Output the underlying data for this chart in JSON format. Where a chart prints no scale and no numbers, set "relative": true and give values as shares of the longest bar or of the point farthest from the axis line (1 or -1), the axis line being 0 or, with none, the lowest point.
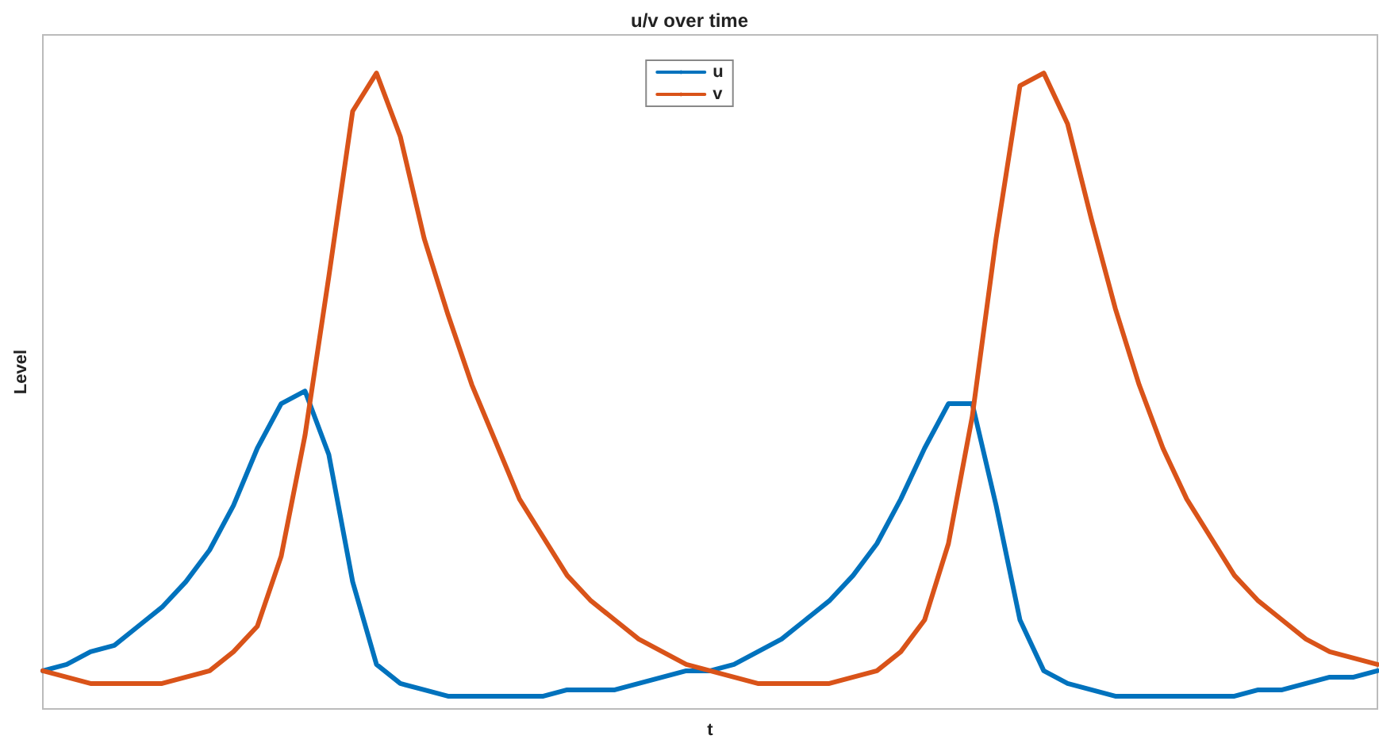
{
  "chart_data": {
    "type": "line",
    "title": "u/v over time",
    "xlabel": "t",
    "ylabel": "Level",
    "relative": true,
    "legend": "top",
    "grid": false,
    "marker": "none",
    "line_style": "solid",
    "categories": [
      null,
      null,
      null,
      null,
      null,
      null,
      null,
      null,
      null,
      null,
      null,
      null,
      null,
      null,
      null,
      null,
      null,
      null,
      null,
      null,
      null,
      null,
      null,
      null,
      null,
      null,
      null,
      null,
      null,
      null,
      null,
      null,
      null,
      null,
      null,
      null,
      null,
      null,
      null,
      null,
      null,
      null,
      null,
      null,
      null,
      null,
      null,
      null,
      null,
      null,
      null,
      null,
      null,
      null,
      null,
      null,
      null
    ],
    "series": [
      {
        "name": "u",
        "color": "#0072bd",
        "values": [
          0.06,
          0.07,
          0.09,
          0.1,
          0.13,
          0.16,
          0.2,
          0.25,
          0.32,
          0.41,
          0.48,
          0.5,
          0.4,
          0.2,
          0.07,
          0.04,
          0.03,
          0.02,
          0.02,
          0.02,
          0.02,
          0.02,
          0.03,
          0.03,
          0.03,
          0.04,
          0.05,
          0.06,
          0.06,
          0.07,
          0.09,
          0.11,
          0.14,
          0.17,
          0.21,
          0.26,
          0.33,
          0.41,
          0.48,
          0.48,
          0.32,
          0.14,
          0.06,
          0.04,
          0.03,
          0.02,
          0.02,
          0.02,
          0.02,
          0.02,
          0.02,
          0.03,
          0.03,
          0.04,
          0.05,
          0.05,
          0.06
        ]
      },
      {
        "name": "v",
        "color": "#d95319",
        "values": [
          0.06,
          0.05,
          0.04,
          0.04,
          0.04,
          0.04,
          0.05,
          0.06,
          0.09,
          0.13,
          0.24,
          0.43,
          0.68,
          0.94,
          1,
          0.9,
          0.74,
          0.62,
          0.51,
          0.42,
          0.33,
          0.27,
          0.21,
          0.17,
          0.14,
          0.11,
          0.09,
          0.07,
          0.06,
          0.05,
          0.04,
          0.04,
          0.04,
          0.04,
          0.05,
          0.06,
          0.09,
          0.14,
          0.26,
          0.46,
          0.74,
          0.98,
          1,
          0.92,
          0.77,
          0.63,
          0.51,
          0.41,
          0.33,
          0.27,
          0.21,
          0.17,
          0.14,
          0.11,
          0.09,
          0.08,
          0.07
        ]
      }
    ]
  }
}
